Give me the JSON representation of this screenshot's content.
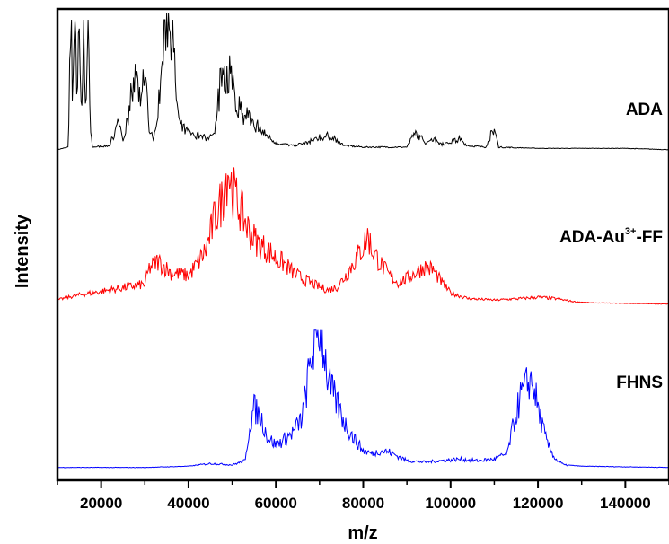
{
  "chart_data": {
    "type": "line",
    "xlabel": "m/z",
    "ylabel": "Intensity",
    "xlim": [
      10000,
      150000
    ],
    "x_ticks": [
      20000,
      40000,
      60000,
      80000,
      100000,
      120000,
      140000
    ],
    "y_ticks_shown": false,
    "grid": false,
    "series": [
      {
        "name": "ADA",
        "color": "#000000",
        "label_parts": [
          "ADA"
        ],
        "points": [
          [
            10000,
            0.0
          ],
          [
            12500,
            0.02
          ],
          [
            13000,
            0.95
          ],
          [
            13500,
            0.3
          ],
          [
            14000,
            1.0
          ],
          [
            14500,
            0.35
          ],
          [
            15000,
            0.9
          ],
          [
            15500,
            0.2
          ],
          [
            16000,
            0.85
          ],
          [
            16500,
            0.25
          ],
          [
            17000,
            0.9
          ],
          [
            17500,
            0.15
          ],
          [
            18000,
            0.02
          ],
          [
            22000,
            0.03
          ],
          [
            24000,
            0.2
          ],
          [
            25000,
            0.05
          ],
          [
            27000,
            0.35
          ],
          [
            28000,
            0.55
          ],
          [
            29000,
            0.3
          ],
          [
            30000,
            0.6
          ],
          [
            31000,
            0.15
          ],
          [
            32000,
            0.05
          ],
          [
            34000,
            0.55
          ],
          [
            35000,
            0.95
          ],
          [
            36000,
            0.85
          ],
          [
            37000,
            0.45
          ],
          [
            38000,
            0.15
          ],
          [
            40000,
            0.12
          ],
          [
            42000,
            0.1
          ],
          [
            44000,
            0.08
          ],
          [
            46000,
            0.1
          ],
          [
            47000,
            0.35
          ],
          [
            48000,
            0.65
          ],
          [
            49000,
            0.4
          ],
          [
            50000,
            0.55
          ],
          [
            51000,
            0.3
          ],
          [
            52000,
            0.25
          ],
          [
            54000,
            0.2
          ],
          [
            56000,
            0.15
          ],
          [
            58000,
            0.1
          ],
          [
            60000,
            0.05
          ],
          [
            64000,
            0.03
          ],
          [
            68000,
            0.06
          ],
          [
            70000,
            0.08
          ],
          [
            72000,
            0.1
          ],
          [
            74000,
            0.06
          ],
          [
            76000,
            0.03
          ],
          [
            80000,
            0.02
          ],
          [
            90000,
            0.02
          ],
          [
            92000,
            0.12
          ],
          [
            94000,
            0.05
          ],
          [
            96000,
            0.08
          ],
          [
            98000,
            0.04
          ],
          [
            102000,
            0.07
          ],
          [
            104000,
            0.03
          ],
          [
            108000,
            0.02
          ],
          [
            110000,
            0.15
          ],
          [
            111000,
            0.02
          ],
          [
            120000,
            0.01
          ],
          [
            140000,
            0.01
          ],
          [
            150000,
            0.0
          ]
        ]
      },
      {
        "name": "ADA-Au3+-FF",
        "color": "#ff0000",
        "label_parts": [
          "ADA-Au",
          "3+",
          "-FF"
        ],
        "points": [
          [
            10000,
            0.03
          ],
          [
            14000,
            0.06
          ],
          [
            18000,
            0.08
          ],
          [
            22000,
            0.1
          ],
          [
            26000,
            0.12
          ],
          [
            30000,
            0.14
          ],
          [
            31000,
            0.25
          ],
          [
            33000,
            0.3
          ],
          [
            36000,
            0.22
          ],
          [
            40000,
            0.2
          ],
          [
            42000,
            0.28
          ],
          [
            44000,
            0.38
          ],
          [
            46000,
            0.6
          ],
          [
            48000,
            0.75
          ],
          [
            49000,
            0.95
          ],
          [
            50000,
            0.8
          ],
          [
            52000,
            0.65
          ],
          [
            54000,
            0.5
          ],
          [
            56000,
            0.42
          ],
          [
            58000,
            0.38
          ],
          [
            60000,
            0.32
          ],
          [
            62000,
            0.28
          ],
          [
            64000,
            0.22
          ],
          [
            66000,
            0.18
          ],
          [
            68000,
            0.15
          ],
          [
            70000,
            0.12
          ],
          [
            72000,
            0.1
          ],
          [
            74000,
            0.12
          ],
          [
            76000,
            0.2
          ],
          [
            78000,
            0.3
          ],
          [
            80000,
            0.4
          ],
          [
            81000,
            0.48
          ],
          [
            82000,
            0.38
          ],
          [
            84000,
            0.28
          ],
          [
            86000,
            0.2
          ],
          [
            88000,
            0.15
          ],
          [
            90000,
            0.18
          ],
          [
            92000,
            0.22
          ],
          [
            94000,
            0.26
          ],
          [
            96000,
            0.24
          ],
          [
            98000,
            0.15
          ],
          [
            100000,
            0.08
          ],
          [
            104000,
            0.04
          ],
          [
            110000,
            0.03
          ],
          [
            116000,
            0.04
          ],
          [
            120000,
            0.05
          ],
          [
            124000,
            0.04
          ],
          [
            128000,
            0.02
          ],
          [
            132000,
            0.01
          ],
          [
            150000,
            0.0
          ]
        ]
      },
      {
        "name": "FHNS",
        "color": "#0000ff",
        "label_parts": [
          "FHNS"
        ],
        "points": [
          [
            10000,
            0.0
          ],
          [
            30000,
            0.0
          ],
          [
            40000,
            0.01
          ],
          [
            45000,
            0.03
          ],
          [
            50000,
            0.02
          ],
          [
            53000,
            0.05
          ],
          [
            54000,
            0.3
          ],
          [
            55000,
            0.42
          ],
          [
            56000,
            0.38
          ],
          [
            57000,
            0.32
          ],
          [
            58000,
            0.22
          ],
          [
            60000,
            0.16
          ],
          [
            62000,
            0.2
          ],
          [
            64000,
            0.25
          ],
          [
            66000,
            0.35
          ],
          [
            67000,
            0.55
          ],
          [
            68000,
            0.75
          ],
          [
            69000,
            0.92
          ],
          [
            70000,
            1.0
          ],
          [
            71000,
            0.85
          ],
          [
            72000,
            0.6
          ],
          [
            74000,
            0.45
          ],
          [
            76000,
            0.3
          ],
          [
            78000,
            0.2
          ],
          [
            80000,
            0.12
          ],
          [
            82000,
            0.1
          ],
          [
            84000,
            0.12
          ],
          [
            86000,
            0.11
          ],
          [
            88000,
            0.08
          ],
          [
            90000,
            0.05
          ],
          [
            94000,
            0.04
          ],
          [
            98000,
            0.05
          ],
          [
            102000,
            0.06
          ],
          [
            106000,
            0.05
          ],
          [
            110000,
            0.06
          ],
          [
            113000,
            0.1
          ],
          [
            114000,
            0.25
          ],
          [
            115000,
            0.38
          ],
          [
            116000,
            0.5
          ],
          [
            117000,
            0.55
          ],
          [
            118000,
            0.62
          ],
          [
            119000,
            0.58
          ],
          [
            120000,
            0.42
          ],
          [
            121000,
            0.3
          ],
          [
            122000,
            0.18
          ],
          [
            124000,
            0.06
          ],
          [
            126000,
            0.02
          ],
          [
            130000,
            0.01
          ],
          [
            150000,
            0.0
          ]
        ]
      }
    ]
  }
}
